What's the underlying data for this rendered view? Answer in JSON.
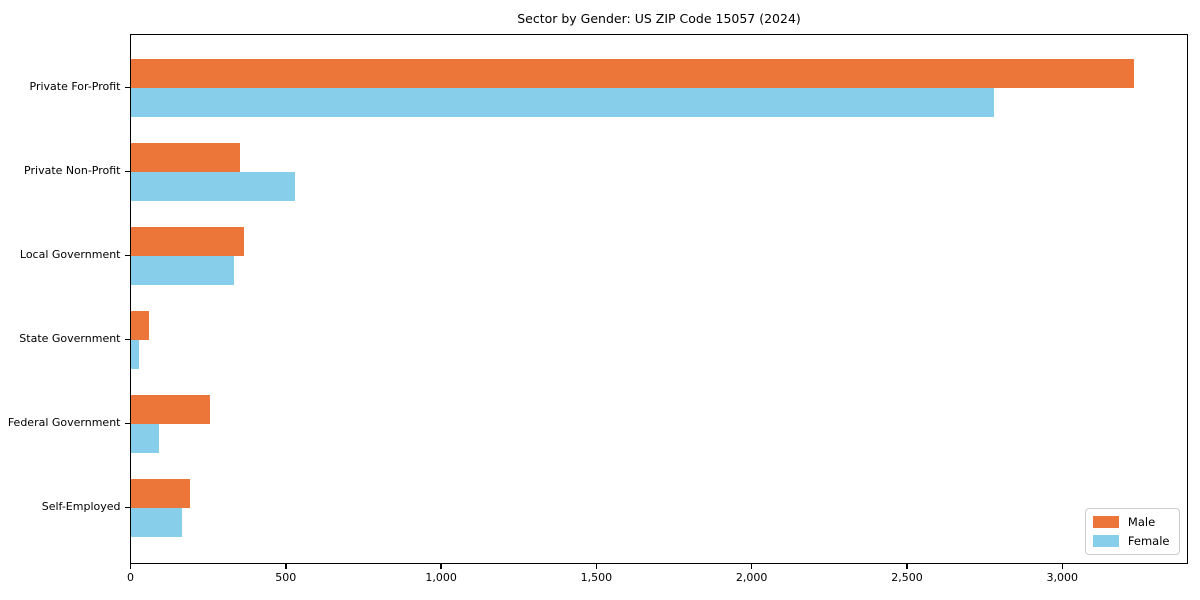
{
  "title": "Sector by Gender: US ZIP Code 15057 (2024)",
  "chart_data": {
    "type": "bar",
    "orientation": "horizontal",
    "title": "Sector by Gender: US ZIP Code 15057 (2024)",
    "xlabel": "",
    "ylabel": "",
    "categories": [
      "Private For-Profit",
      "Private Non-Profit",
      "Local Government",
      "State Government",
      "Federal Government",
      "Self-Employed"
    ],
    "series": [
      {
        "name": "Male",
        "color": "#EC7639",
        "values": [
          3230,
          351,
          364,
          61,
          257,
          191
        ]
      },
      {
        "name": "Female",
        "color": "#87CEEB",
        "values": [
          2780,
          531,
          332,
          26,
          92,
          165
        ]
      }
    ],
    "xlim": [
      0,
      3400
    ],
    "x_ticks": [
      0,
      500,
      1000,
      1500,
      2000,
      2500,
      3000
    ],
    "x_tick_labels": [
      "0",
      "500",
      "1,000",
      "1,500",
      "2,000",
      "2,500",
      "3,000"
    ],
    "grid": false,
    "legend_position": "lower right",
    "legend_entries": [
      "Male",
      "Female"
    ]
  },
  "colors": {
    "male": "#EC7639",
    "female": "#87CEEB",
    "spine": "#000000",
    "text": "#000000",
    "legend_border": "#cccccc",
    "background": "#ffffff"
  }
}
